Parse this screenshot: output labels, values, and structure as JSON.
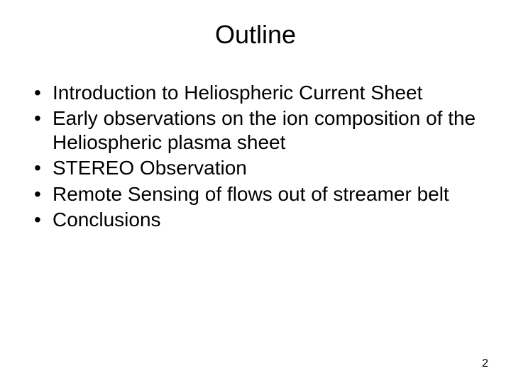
{
  "slide": {
    "title": "Outline",
    "bullets": [
      "Introduction to Heliospheric Current Sheet",
      "Early observations on the ion composition of the Heliospheric plasma sheet",
      "STEREO Observation",
      "Remote Sensing of flows out of streamer belt",
      "Conclusions"
    ],
    "page_number": "2",
    "styling": {
      "background_color": "#ffffff",
      "text_color": "#000000",
      "title_fontsize": 36,
      "body_fontsize": 28,
      "page_number_fontsize": 16,
      "font_family": "Arial"
    }
  }
}
